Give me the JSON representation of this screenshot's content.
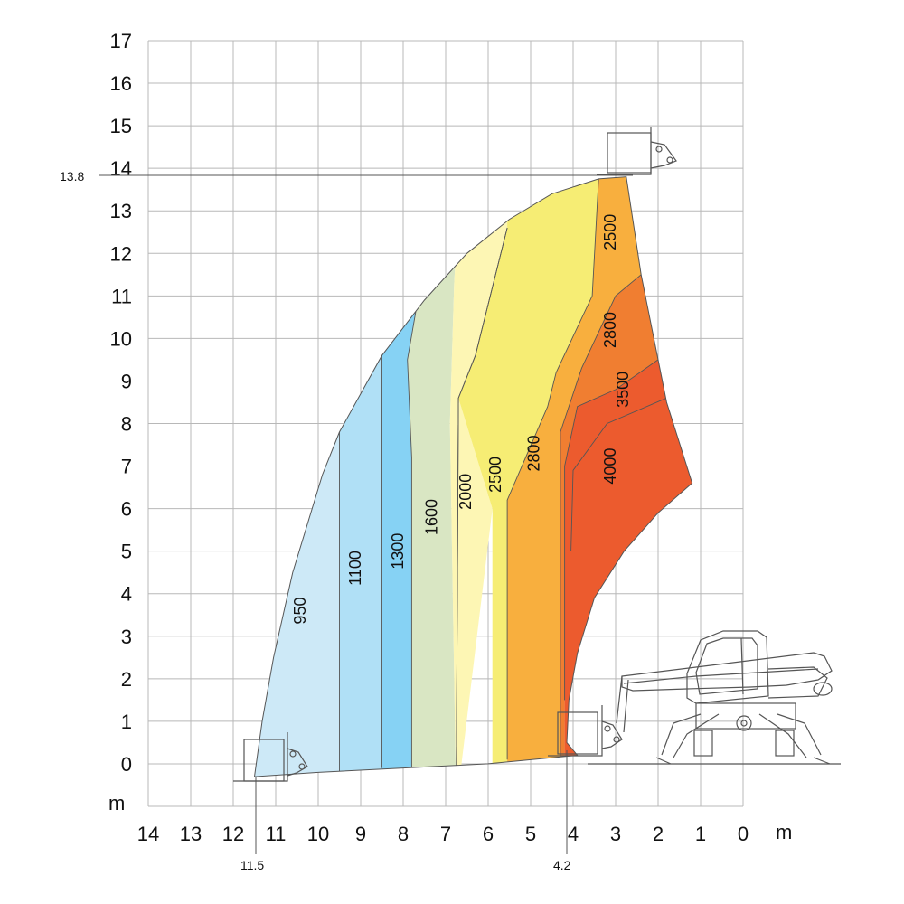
{
  "chart_data": {
    "type": "area",
    "title": "",
    "xlabel": "m",
    "ylabel": "m",
    "x_reversed": true,
    "xlim": [
      0,
      14
    ],
    "ylim": [
      -1,
      17
    ],
    "grid": true,
    "x_ticks": [
      "14",
      "13",
      "12",
      "11",
      "10",
      "9",
      "8",
      "7",
      "6",
      "5",
      "4",
      "3",
      "2",
      "1",
      "0"
    ],
    "y_ticks": [
      "17",
      "16",
      "15",
      "14",
      "13",
      "12",
      "11",
      "10",
      "9",
      "8",
      "7",
      "6",
      "5",
      "4",
      "3",
      "2",
      "1",
      "0"
    ],
    "annotations": {
      "max_height": "13.8",
      "max_reach": "11.5",
      "inner_reach": "4.2"
    },
    "envelope": {
      "outer_arc": [
        [
          11.5,
          -0.3
        ],
        [
          11.32,
          1
        ],
        [
          11.05,
          2.5
        ],
        [
          10.6,
          4.5
        ],
        [
          9.9,
          6.8
        ],
        [
          9.5,
          7.8
        ],
        [
          8.5,
          9.6
        ],
        [
          7.5,
          10.9
        ],
        [
          6.5,
          12
        ],
        [
          5.5,
          12.8
        ],
        [
          4.5,
          13.4
        ],
        [
          3.4,
          13.75
        ],
        [
          2.75,
          13.8
        ]
      ],
      "right_edge": [
        [
          2.75,
          13.8
        ],
        [
          2.4,
          11.5
        ],
        [
          2.0,
          9.5
        ],
        [
          1.8,
          8.5
        ],
        [
          1.2,
          6.6
        ]
      ],
      "inner_arc": [
        [
          1.2,
          6.6
        ],
        [
          2.0,
          5.9
        ],
        [
          2.8,
          5.0
        ],
        [
          3.5,
          3.9
        ],
        [
          3.9,
          2.6
        ],
        [
          4.1,
          1.5
        ],
        [
          4.15,
          0.5
        ],
        [
          3.9,
          0.2
        ]
      ],
      "bottom": [
        [
          3.9,
          0.2
        ],
        [
          6.0,
          0.0
        ],
        [
          8.0,
          -0.1
        ],
        [
          10.0,
          -0.2
        ],
        [
          11.5,
          -0.3
        ]
      ]
    },
    "zones": [
      {
        "label": "950",
        "capacity": 950,
        "color": "#cde9f7"
      },
      {
        "label": "1100",
        "capacity": 1100,
        "color": "#b0e0f6"
      },
      {
        "label": "1300",
        "capacity": 1300,
        "color": "#86d2f4"
      },
      {
        "label": "1600",
        "capacity": 1600,
        "color": "#d9e6c3"
      },
      {
        "label": "2000",
        "capacity": 2000,
        "color": "#fdf6b4"
      },
      {
        "label": "2500",
        "capacity": 2500,
        "color": "#f6ed74"
      },
      {
        "label": "2800",
        "capacity": 2800,
        "color": "#f8af3e"
      },
      {
        "label": "3500",
        "capacity": 3500,
        "color": "#f07e31"
      },
      {
        "label": "4000",
        "capacity": 4000,
        "color": "#ec5b2e"
      }
    ],
    "zone_boundaries": {
      "b950_1100": [
        [
          9.5,
          8.7
        ],
        [
          9.5,
          -0.2
        ]
      ],
      "b1100_1300": [
        [
          8.5,
          10.6
        ],
        [
          8.5,
          5.8
        ],
        [
          8.5,
          -0.1
        ]
      ],
      "b1300_1600": [
        [
          7.5,
          11.8
        ],
        [
          7.9,
          9.5
        ],
        [
          7.8,
          7.2
        ],
        [
          7.8,
          -0.1
        ]
      ],
      "b1600_2000": [
        [
          5.55,
          12.6
        ],
        [
          6.3,
          9.6
        ],
        [
          6.7,
          8.6
        ],
        [
          6.75,
          -0.1
        ]
      ],
      "b2000_2500": [
        [
          5.55,
          12.6
        ],
        [
          6.3,
          9.6
        ],
        [
          6.7,
          8.6
        ],
        [
          6.75,
          -0.1
        ]
      ],
      "b2500_2800": [
        [
          3.4,
          13.75
        ],
        [
          3.55,
          11.0
        ],
        [
          4.4,
          9.2
        ],
        [
          4.6,
          8.4
        ],
        [
          5.55,
          6.2
        ],
        [
          5.55,
          0.1
        ]
      ],
      "b2800_3500": [
        [
          2.4,
          11.5
        ],
        [
          3.0,
          11.0
        ],
        [
          3.8,
          9.3
        ],
        [
          4.3,
          7.8
        ],
        [
          4.3,
          6.6
        ],
        [
          4.3,
          0.2
        ]
      ],
      "b3500_4000": [
        [
          2.0,
          9.5
        ],
        [
          3.0,
          8.8
        ],
        [
          3.9,
          8.4
        ],
        [
          4.2,
          7.0
        ],
        [
          4.2,
          1.5
        ]
      ],
      "b4000_inner": [
        [
          1.8,
          8.6
        ],
        [
          3.2,
          8.0
        ],
        [
          4.0,
          6.9
        ],
        [
          4.05,
          5.0
        ]
      ]
    },
    "zone_label_positions": [
      [
        "950",
        10.3,
        3.6
      ],
      [
        "1100",
        9.0,
        4.6
      ],
      [
        "1300",
        8.0,
        5.0
      ],
      [
        "1600",
        7.2,
        5.8
      ],
      [
        "2000",
        6.4,
        6.4
      ],
      [
        "2500",
        5.7,
        6.8
      ],
      [
        "2800",
        4.8,
        7.3
      ],
      [
        "3500",
        2.7,
        8.8
      ],
      [
        "4000",
        3.0,
        7.0
      ],
      [
        "2800",
        3.0,
        10.2
      ],
      [
        "2500",
        3.0,
        12.5
      ]
    ]
  }
}
